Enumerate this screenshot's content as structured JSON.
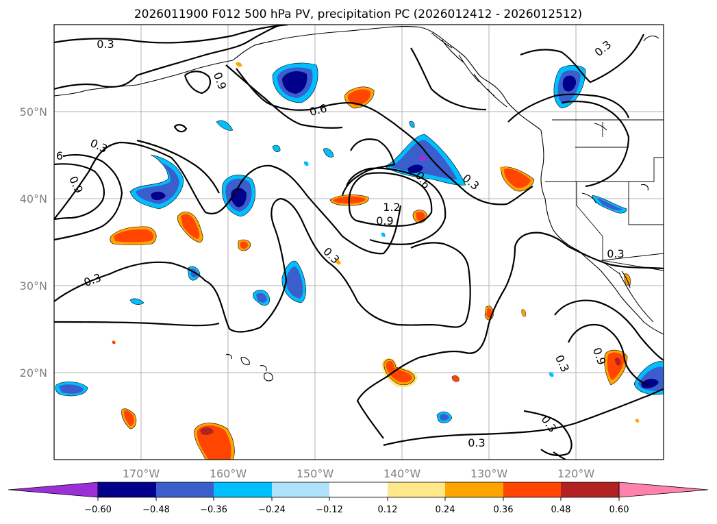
{
  "title": "2026011900 F012 500 hPa PV, precipitation PC (2026012412 - 2026012512)",
  "lat_labels": [
    "50°N",
    "40°N",
    "30°N",
    "20°N"
  ],
  "lon_labels": [
    "170°W",
    "160°W",
    "150°W",
    "140°W",
    "130°W",
    "120°W"
  ],
  "contour_labels": [
    "0.3",
    "0.9",
    "0.6",
    "0.3",
    "6",
    "0.9",
    "0.6",
    "0.3",
    "1.2",
    "0.9",
    "0.3",
    "0.3",
    "0.3",
    "0.3",
    "0.9",
    "0.3",
    "0.3",
    "0.3"
  ],
  "colorbar": {
    "tick_labels": [
      "−0.60",
      "−0.48",
      "−0.36",
      "−0.24",
      "−0.12",
      "0.12",
      "0.24",
      "0.36",
      "0.48",
      "0.60"
    ],
    "colors": [
      "#9b30d6",
      "#00008b",
      "#3a5fcd",
      "#00bfff",
      "#aee2fa",
      "#ffffff",
      "#ffe88a",
      "#ffa500",
      "#ff4500",
      "#b22222",
      "#ff82ab"
    ]
  },
  "map_extent": {
    "lon": [
      -180,
      -110
    ],
    "lat": [
      10,
      60
    ]
  }
}
